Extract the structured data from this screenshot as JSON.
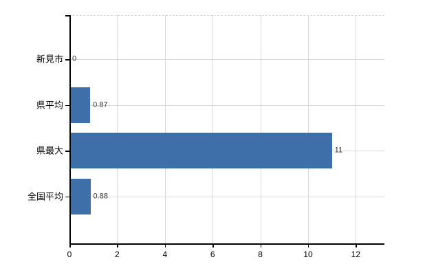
{
  "chart_data": {
    "type": "bar",
    "orientation": "horizontal",
    "title": "",
    "xlabel": "",
    "ylabel": "",
    "categories": [
      "新見市",
      "県平均",
      "県最大",
      "全国平均"
    ],
    "values": [
      0,
      0.87,
      11,
      0.88
    ],
    "value_labels": [
      "0",
      "0.87",
      "11",
      "0.88"
    ],
    "x_tick_labels": [
      "0",
      "2",
      "4",
      "6",
      "8",
      "10",
      "12"
    ],
    "x_tick_values": [
      0,
      2,
      4,
      6,
      8,
      10,
      12
    ],
    "xlim": [
      0,
      13.2
    ],
    "grid": "on",
    "legend_position": "none",
    "colors": {
      "bar": "#3e6fa8",
      "grid": "#d9d9d9",
      "axis": "#000000",
      "category_text": "#000000",
      "value_text": "#333333",
      "background": "#ffffff"
    }
  }
}
